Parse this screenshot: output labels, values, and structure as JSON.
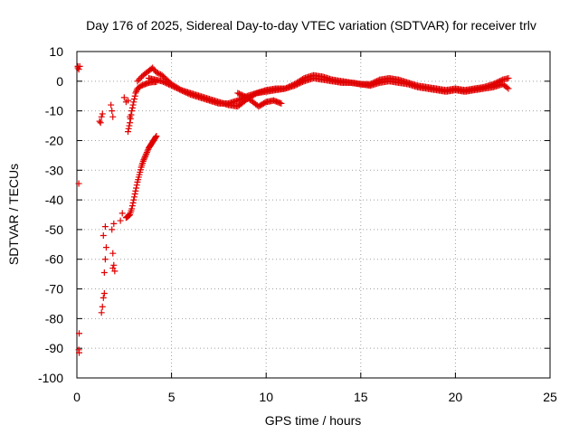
{
  "chart_data": {
    "type": "scatter",
    "title": "Day 176 of 2025, Sidereal Day-to-day VTEC variation (SDTVAR) for receiver trlv",
    "xlabel": "GPS time / hours",
    "ylabel": "SDTVAR / TECUs",
    "xlim": [
      0,
      25
    ],
    "ylim": [
      -100,
      10
    ],
    "xticks": [
      0,
      5,
      10,
      15,
      20,
      25
    ],
    "yticks": [
      10,
      0,
      -10,
      -20,
      -30,
      -40,
      -50,
      -60,
      -70,
      -80,
      -90,
      -100
    ],
    "grid": true,
    "marker": "plus",
    "color": "#e00000",
    "series": [
      {
        "name": "isolated_points",
        "points": [
          [
            0.05,
            5
          ],
          [
            0.1,
            4
          ],
          [
            0.15,
            5
          ],
          [
            0.05,
            4.5
          ],
          [
            0.1,
            -34.5
          ],
          [
            0.12,
            -85
          ],
          [
            0.1,
            -90.5
          ],
          [
            0.12,
            -91.5
          ],
          [
            1.2,
            -13.5
          ],
          [
            1.3,
            -12
          ],
          [
            1.35,
            -11
          ],
          [
            1.25,
            -14
          ],
          [
            1.8,
            -8
          ],
          [
            1.85,
            -10
          ],
          [
            1.9,
            -12
          ],
          [
            1.4,
            -52
          ],
          [
            1.5,
            -49
          ],
          [
            1.55,
            -56
          ],
          [
            1.45,
            -64.5
          ],
          [
            1.5,
            -60
          ],
          [
            1.3,
            -78
          ],
          [
            1.35,
            -76
          ],
          [
            1.4,
            -73
          ],
          [
            1.45,
            -71.5
          ],
          [
            1.85,
            -50
          ],
          [
            1.95,
            -48
          ],
          [
            1.9,
            -58
          ],
          [
            1.95,
            -62
          ],
          [
            1.9,
            -63
          ],
          [
            2.0,
            -64
          ],
          [
            2.3,
            -47
          ],
          [
            2.4,
            -44.5
          ],
          [
            2.5,
            -5.5
          ],
          [
            2.6,
            -7
          ],
          [
            2.7,
            -6.5
          ],
          [
            2.8,
            -12
          ]
        ]
      },
      {
        "name": "rising_track",
        "x": [
          2.6,
          2.7,
          2.8,
          2.9,
          3.0,
          3.1,
          3.2,
          3.3,
          3.4,
          3.5,
          3.6,
          3.7,
          3.8,
          3.9,
          4.0,
          4.1,
          4.2
        ],
        "y": [
          -46,
          -45.5,
          -45,
          -43,
          -40,
          -37,
          -34,
          -31.5,
          -29,
          -27,
          -25.5,
          -24,
          -22.5,
          -21.5,
          -20.5,
          -19.5,
          -18.5
        ]
      },
      {
        "name": "recovery_track",
        "x": [
          2.7,
          2.8,
          2.9,
          3.0,
          3.1,
          3.2,
          3.4,
          3.6,
          3.8,
          4.0,
          4.2
        ],
        "y": [
          -17,
          -14,
          -10,
          -7,
          -4,
          -2.5,
          -1.5,
          -1,
          -0.5,
          -0.3,
          -0.2
        ]
      },
      {
        "name": "main_trace_upper",
        "x": [
          3.2,
          3.5,
          3.8,
          4.0,
          4.2,
          4.5,
          5.0,
          5.5,
          6.0,
          6.5,
          7.0,
          7.5,
          8.0,
          8.5,
          9.0,
          9.5,
          10.0,
          10.5,
          11.0,
          11.5,
          12.0,
          12.5,
          13.0,
          13.5,
          14.0,
          14.5,
          15.0,
          15.5,
          16.0,
          16.5,
          17.0,
          17.5,
          18.0,
          18.5,
          19.0,
          19.5,
          20.0,
          20.5,
          21.0,
          21.5,
          22.0,
          22.5,
          22.8
        ],
        "y": [
          0,
          2,
          3.5,
          4.5,
          3,
          2,
          -1,
          -3,
          -4.5,
          -5.5,
          -6.5,
          -7.5,
          -7.5,
          -6.5,
          -5,
          -4,
          -3.5,
          -3,
          -2.5,
          -1,
          1,
          2,
          1.5,
          0.5,
          0,
          -0.5,
          -1,
          -1,
          0.5,
          1,
          0.5,
          -0.5,
          -1.5,
          -2,
          -2.5,
          -3,
          -2.5,
          -3,
          -2.5,
          -2,
          -1,
          0.5,
          1
        ]
      },
      {
        "name": "main_trace_lower",
        "x": [
          3.8,
          4.5,
          5.0,
          5.5,
          6.0,
          6.5,
          7.0,
          7.5,
          8.0,
          8.5,
          9.0,
          9.5,
          10.0,
          10.5,
          11.0,
          11.5,
          12.0,
          12.5,
          13.0,
          13.5,
          14.0,
          14.5,
          15.0,
          15.5,
          16.0,
          16.5,
          17.0,
          17.5,
          18.0,
          18.5,
          19.0,
          19.5,
          20.0,
          20.5,
          21.0,
          21.5,
          22.0,
          22.5,
          22.8
        ],
        "y": [
          1,
          0,
          -1.5,
          -3,
          -4,
          -5,
          -6,
          -7,
          -8,
          -8.5,
          -6,
          -4,
          -3,
          -2.5,
          -2.5,
          -1.5,
          0,
          1,
          0.5,
          0,
          -0.5,
          -0.5,
          -1,
          -1.5,
          -0.5,
          0,
          -0.5,
          -1,
          -2,
          -2.5,
          -3,
          -3.5,
          -3,
          -3.5,
          -3,
          -2.5,
          -2,
          -1,
          -2.5
        ]
      },
      {
        "name": "branch_tracks",
        "x": [
          8.5,
          9.0,
          9.3,
          9.6,
          10.0,
          10.4,
          10.8
        ],
        "y": [
          -4,
          -5.5,
          -7,
          -8.5,
          -7,
          -6.5,
          -7.5
        ]
      }
    ]
  }
}
